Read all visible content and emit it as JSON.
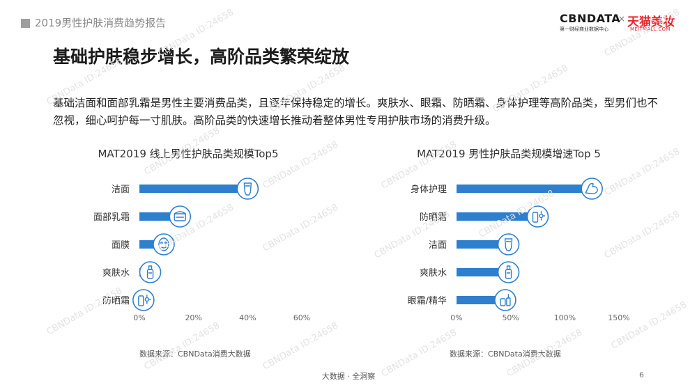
{
  "header": {
    "report_title": "2019男性护肤消费趋势报告"
  },
  "logos": {
    "cbn_text": "CBNDATA",
    "cbn_sub": "第一财经商业数据中心",
    "separator": "×",
    "tmall_text": "天猫美妆",
    "tmall_sub": "MEITMALL.COM"
  },
  "slide": {
    "title": "基础护肤稳步增长，高阶品类繁荣绽放",
    "description": "基础洁面和面部乳霜是男性主要消费品类，且逐年保持稳定的增长。爽肤水、眼霜、防晒霜、身体护理等高阶品类，型男们也不忽视，细心呵护每一寸肌肤。高阶品类的快速增长推动着整体男性专用护肤市场的消费升级。"
  },
  "colors": {
    "bar": "#2e7fcd",
    "icon": "#2e7fcd"
  },
  "chart_data": [
    {
      "type": "bar",
      "orientation": "horizontal",
      "title": "MAT2019 线上男性护肤品类规模Top5",
      "categories": [
        "洁面",
        "面部乳霜",
        "面膜",
        "爽肤水",
        "防晒霜"
      ],
      "values": [
        40,
        15,
        9,
        4,
        1.5
      ],
      "icons": [
        "cleanser-tube-icon",
        "cream-jar-icon",
        "face-mask-icon",
        "toner-bottle-icon",
        "sunscreen-icon"
      ],
      "xlim": [
        0,
        60
      ],
      "xticks": [
        "0%",
        "20%",
        "40%",
        "60%"
      ],
      "source": "数据来源：CBNData消费大数据"
    },
    {
      "type": "bar",
      "orientation": "horizontal",
      "title": "MAT2019 男性护肤品类规模增速Top 5",
      "categories": [
        "身体护理",
        "防晒霜",
        "洁面",
        "爽肤水",
        "眼霜/精华"
      ],
      "values": [
        125,
        75,
        48,
        48,
        45
      ],
      "icons": [
        "muscle-arm-icon",
        "sunscreen-icon",
        "cleanser-tube-icon",
        "toner-bottle-icon",
        "eye-serum-icon"
      ],
      "xlim": [
        0,
        150
      ],
      "xticks": [
        "0%",
        "50%",
        "100%",
        "150%"
      ],
      "source": "数据来源：CBNData消费大数据"
    }
  ],
  "footer": {
    "text": "大数据 · 全洞察",
    "page_number": "6"
  },
  "watermark": "CBNData ID:24658"
}
